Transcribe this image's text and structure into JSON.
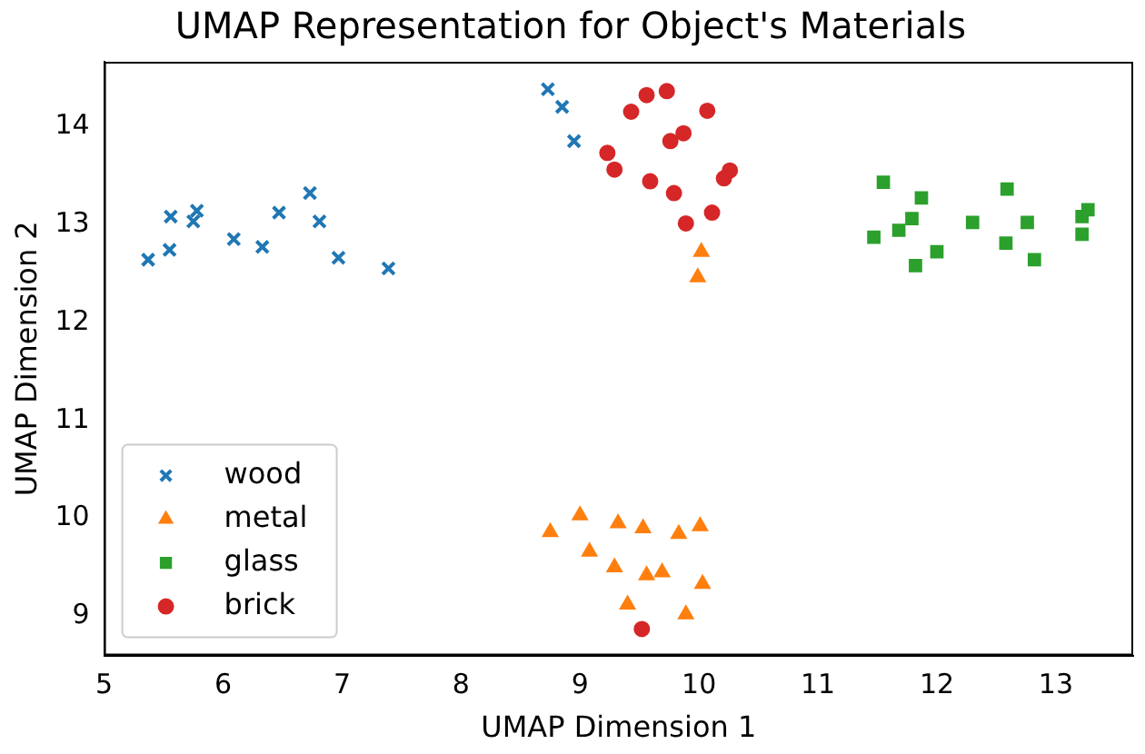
{
  "chart_data": {
    "type": "scatter",
    "title": "UMAP Representation for Object's Materials",
    "xlabel": "UMAP Dimension 1",
    "ylabel": "UMAP Dimension 2",
    "xlim": [
      5,
      13.65
    ],
    "ylim": [
      8.6,
      14.66
    ],
    "xticks": [
      5,
      6,
      7,
      8,
      9,
      10,
      11,
      12,
      13
    ],
    "yticks": [
      9,
      10,
      11,
      12,
      13,
      14
    ],
    "grid": false,
    "legend": "bottom left",
    "series": [
      {
        "name": "wood",
        "color": "#1f77b4",
        "marker": "cross",
        "x": [
          5.37,
          5.55,
          5.56,
          5.75,
          5.78,
          6.09,
          6.33,
          6.47,
          6.73,
          6.81,
          6.97,
          7.39,
          8.73,
          8.85,
          8.95
        ],
        "values": [
          12.64,
          12.74,
          13.08,
          13.03,
          13.14,
          12.85,
          12.77,
          13.12,
          13.32,
          13.03,
          12.66,
          12.55,
          14.38,
          14.2,
          13.85
        ]
      },
      {
        "name": "metal",
        "color": "#ff7f0e",
        "marker": "triangle",
        "x": [
          10.02,
          9.99,
          8.75,
          9.0,
          9.32,
          9.53,
          9.83,
          10.01,
          9.08,
          9.29,
          9.56,
          9.69,
          10.03,
          9.4,
          9.89
        ],
        "values": [
          12.72,
          12.46,
          9.86,
          10.03,
          9.95,
          9.9,
          9.84,
          9.92,
          9.66,
          9.5,
          9.42,
          9.45,
          9.33,
          9.12,
          9.02
        ]
      },
      {
        "name": "glass",
        "color": "#2ca02c",
        "marker": "square",
        "x": [
          11.55,
          11.87,
          11.79,
          11.68,
          11.47,
          12.0,
          11.82,
          12.3,
          12.59,
          12.76,
          12.58,
          12.82,
          13.27,
          13.22,
          13.22
        ],
        "values": [
          13.43,
          13.27,
          13.06,
          12.94,
          12.87,
          12.72,
          12.58,
          13.02,
          13.36,
          13.02,
          12.81,
          12.64,
          13.15,
          13.08,
          12.9
        ]
      },
      {
        "name": "brick",
        "color": "#d62728",
        "marker": "circle",
        "x": [
          9.43,
          9.56,
          9.73,
          10.07,
          9.87,
          9.76,
          9.23,
          9.29,
          9.59,
          9.79,
          10.26,
          10.21,
          10.11,
          9.89,
          9.52
        ],
        "values": [
          14.15,
          14.32,
          14.36,
          14.16,
          13.93,
          13.85,
          13.73,
          13.56,
          13.44,
          13.32,
          13.55,
          13.47,
          13.12,
          13.01,
          8.87
        ]
      }
    ]
  }
}
